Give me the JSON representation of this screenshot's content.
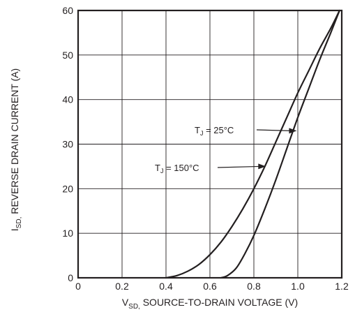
{
  "chart_data": {
    "type": "line",
    "xlabel": {
      "main": "V",
      "sub": "SD,",
      "rest": " SOURCE-TO-DRAIN VOLTAGE (V)"
    },
    "ylabel": {
      "main": "I",
      "sub": "SD,",
      "rest": " REVERSE DRAIN CURRENT (A)"
    },
    "xlim": [
      0,
      1.2
    ],
    "ylim": [
      0,
      60
    ],
    "x_ticks": [
      "0",
      "0.2",
      "0.4",
      "0.6",
      "0.8",
      "1.0",
      "1.2"
    ],
    "y_ticks": [
      "0",
      "10",
      "20",
      "30",
      "40",
      "50",
      "60"
    ],
    "grid": true,
    "series": [
      {
        "name": "T_J = 25°C",
        "label_main": "T",
        "label_sub": "J",
        "label_rest": " = 25°C",
        "x": [
          0.65,
          0.68,
          0.72,
          0.76,
          0.8,
          0.85,
          0.9,
          0.95,
          1.0,
          1.05,
          1.1,
          1.15,
          1.19
        ],
        "y": [
          0,
          0.5,
          2.2,
          5.5,
          9.5,
          15.5,
          22.0,
          29.0,
          36.0,
          42.5,
          49.0,
          55.0,
          60.0
        ],
        "arrow_to": {
          "x": 0.995,
          "y": 33
        }
      },
      {
        "name": "T_J = 150°C",
        "label_main": "T",
        "label_sub": "J",
        "label_rest": " = 150°C",
        "x": [
          0.4,
          0.45,
          0.5,
          0.55,
          0.6,
          0.65,
          0.7,
          0.75,
          0.8,
          0.85,
          0.9,
          0.95,
          1.0,
          1.05,
          1.1,
          1.15,
          1.19
        ],
        "y": [
          0,
          0.5,
          1.5,
          3.0,
          5.2,
          8.0,
          11.5,
          15.5,
          20.0,
          25.0,
          30.5,
          36.0,
          41.5,
          46.5,
          51.5,
          56.0,
          60.0
        ],
        "arrow_to": {
          "x": 0.855,
          "y": 25
        }
      }
    ]
  }
}
